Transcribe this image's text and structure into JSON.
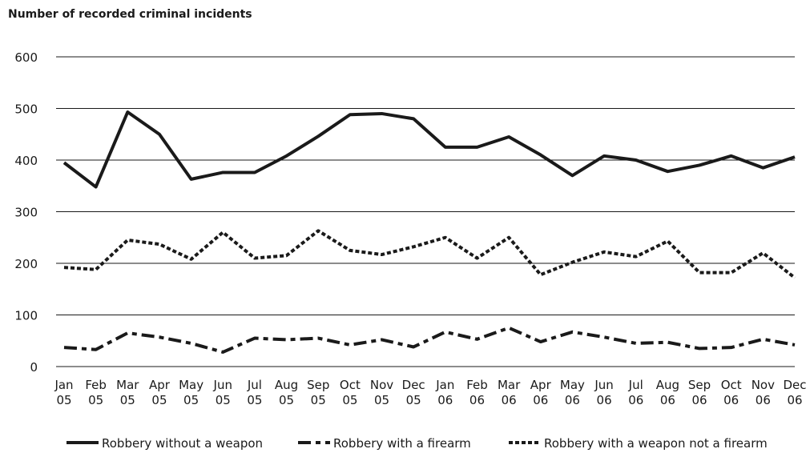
{
  "chart_data": {
    "type": "line",
    "title": "Number of recorded criminal incidents",
    "categories": [
      "Jan 05",
      "Feb 05",
      "Mar 05",
      "Apr 05",
      "May 05",
      "Jun 05",
      "Jul 05",
      "Aug 05",
      "Sep 05",
      "Oct 05",
      "Nov 05",
      "Dec 05",
      "Jan 06",
      "Feb 06",
      "Mar 06",
      "Apr 06",
      "May 06",
      "Jun 06",
      "Jul 06",
      "Aug 06",
      "Sep 06",
      "Oct 06",
      "Nov 06",
      "Dec 06"
    ],
    "series": [
      {
        "name": "Robbery without a weapon",
        "color": "#1a1a1a",
        "dash": "solid",
        "values": [
          395,
          348,
          493,
          450,
          363,
          376,
          376,
          408,
          446,
          488,
          490,
          480,
          425,
          425,
          445,
          410,
          370,
          408,
          400,
          378,
          390,
          408,
          385,
          406
        ]
      },
      {
        "name": "Robbery with a firearm",
        "color": "#1a1a1a",
        "dash": "dashdot",
        "values": [
          37,
          33,
          65,
          57,
          45,
          28,
          55,
          52,
          55,
          42,
          52,
          38,
          67,
          53,
          75,
          48,
          67,
          57,
          45,
          47,
          35,
          37,
          53,
          42
        ]
      },
      {
        "name": "Robbery with a weapon not a firearm",
        "color": "#1a1a1a",
        "dash": "dotted",
        "values": [
          192,
          188,
          245,
          237,
          208,
          260,
          210,
          215,
          263,
          225,
          217,
          232,
          250,
          210,
          250,
          178,
          202,
          222,
          213,
          243,
          182,
          182,
          220,
          172
        ]
      }
    ],
    "ylim": [
      0,
      600
    ],
    "yticks": [
      0,
      100,
      200,
      300,
      400,
      500,
      600
    ],
    "grid": true,
    "legend": "bottom"
  }
}
